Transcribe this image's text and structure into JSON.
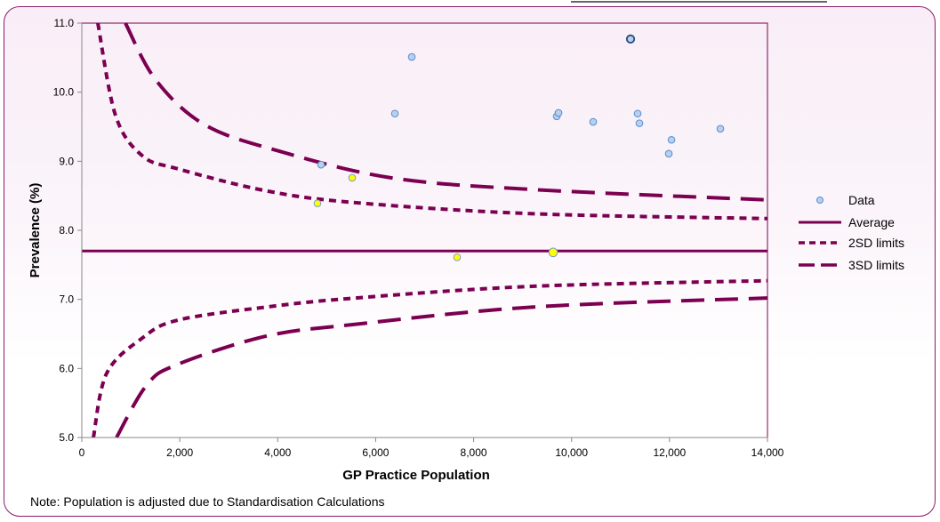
{
  "chart_data": {
    "type": "scatter",
    "title": "",
    "xlabel": "GP Practice Population",
    "ylabel": "Prevalence (%)",
    "xlim": [
      0,
      14000
    ],
    "ylim": [
      5.0,
      11.0
    ],
    "x_ticks": [
      "0",
      "2,000",
      "4,000",
      "6,000",
      "8,000",
      "10,000",
      "12,000",
      "14,000"
    ],
    "x_tick_values": [
      0,
      2000,
      4000,
      6000,
      8000,
      10000,
      12000,
      14000
    ],
    "y_ticks": [
      "5.0",
      "6.0",
      "7.0",
      "8.0",
      "9.0",
      "10.0",
      "11.0"
    ],
    "y_tick_values": [
      5,
      6,
      7,
      8,
      9,
      10,
      11
    ],
    "legend_position": "right",
    "legend": [
      "Data",
      "Average",
      "2SD limits",
      "3SD limits"
    ],
    "series": [
      {
        "name": "Data",
        "points": [
          {
            "x": 4885,
            "y": 8.95,
            "kind": "normal"
          },
          {
            "x": 4812,
            "y": 8.39,
            "kind": "highlight"
          },
          {
            "x": 5520,
            "y": 8.76,
            "kind": "highlight"
          },
          {
            "x": 6392,
            "y": 9.69,
            "kind": "normal"
          },
          {
            "x": 6737,
            "y": 10.51,
            "kind": "normal"
          },
          {
            "x": 7663,
            "y": 7.61,
            "kind": "highlight"
          },
          {
            "x": 9624,
            "y": 7.68,
            "kind": "highlight-large"
          },
          {
            "x": 9697,
            "y": 9.65,
            "kind": "normal"
          },
          {
            "x": 9733,
            "y": 9.7,
            "kind": "normal"
          },
          {
            "x": 10441,
            "y": 9.57,
            "kind": "normal"
          },
          {
            "x": 11204,
            "y": 10.77,
            "kind": "selected"
          },
          {
            "x": 11349,
            "y": 9.69,
            "kind": "normal"
          },
          {
            "x": 11385,
            "y": 9.55,
            "kind": "normal"
          },
          {
            "x": 11985,
            "y": 9.11,
            "kind": "normal"
          },
          {
            "x": 12040,
            "y": 9.31,
            "kind": "normal"
          },
          {
            "x": 13038,
            "y": 9.47,
            "kind": "normal"
          }
        ]
      },
      {
        "name": "Average",
        "value": 7.7
      },
      {
        "name": "2SD upper",
        "x": [
          327,
          690,
          1235,
          1961,
          3777,
          5593,
          9225,
          14000
        ],
        "y": [
          11.0,
          9.66,
          9.08,
          8.89,
          8.57,
          8.4,
          8.24,
          8.17
        ]
      },
      {
        "name": "2SD lower",
        "x": [
          236,
          508,
          1235,
          1961,
          3777,
          5593,
          9225,
          14000
        ],
        "y": [
          5.0,
          5.93,
          6.44,
          6.7,
          6.89,
          7.02,
          7.19,
          7.27
        ]
      },
      {
        "name": "3SD upper",
        "x": [
          890,
          1507,
          2506,
          4013,
          6319,
          9225,
          14000
        ],
        "y": [
          11.0,
          10.18,
          9.53,
          9.15,
          8.76,
          8.59,
          8.44
        ]
      },
      {
        "name": "3SD lower",
        "x": [
          708,
          1326,
          1961,
          3777,
          5593,
          9225,
          14000
        ],
        "y": [
          5.0,
          5.76,
          6.06,
          6.47,
          6.64,
          6.89,
          7.02
        ]
      }
    ]
  },
  "colors": {
    "line": "#7b0051",
    "point_fill": "#b8d0ef",
    "point_stroke": "#5a8ccc",
    "highlight_fill": "#ffff00",
    "selected_stroke": "#2a4a78"
  },
  "note": "Note: Population is adjusted due to Standardisation Calculations"
}
